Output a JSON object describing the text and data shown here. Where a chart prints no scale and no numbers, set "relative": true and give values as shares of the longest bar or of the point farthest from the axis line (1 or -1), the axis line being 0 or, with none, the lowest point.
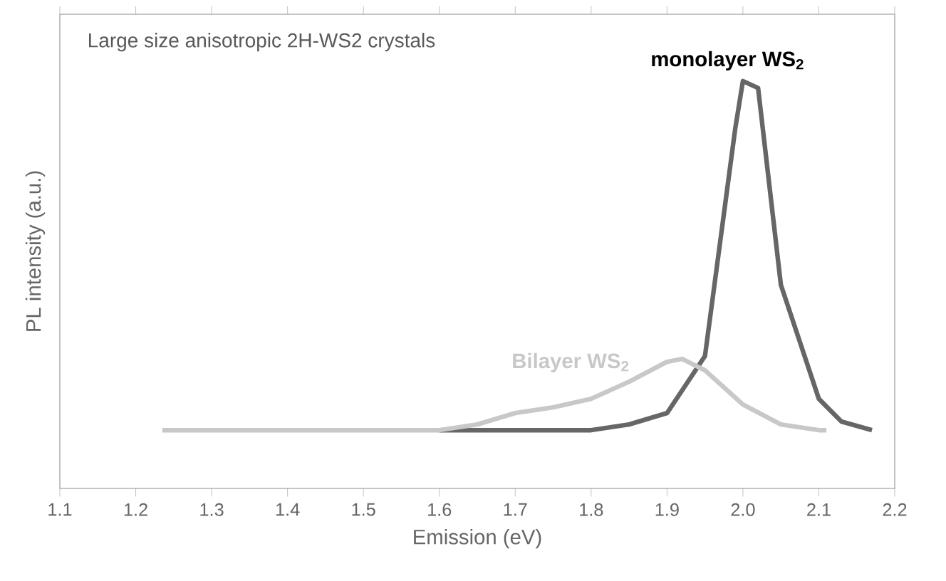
{
  "chart_data": {
    "type": "line",
    "xlabel": "Emission (eV)",
    "ylabel": "PL intensity (a.u.)",
    "relative": true,
    "tick_labels": "x",
    "grid": false,
    "legend": false,
    "marker": "none",
    "line_style": "solid",
    "xlim": [
      1.1,
      2.2
    ],
    "xticks": [
      1.1,
      1.2,
      1.3,
      1.4,
      1.5,
      1.6,
      1.7,
      1.8,
      1.9,
      {
        "value": 2,
        "label": "2.0"
      },
      2.1,
      2.2
    ],
    "annotations": [
      "Large size anisotropic 2H-WS2 crystals"
    ],
    "series": [
      {
        "name": "**monolayer WS$_{2}$**",
        "color": "#666666",
        "x": [
          1.6,
          1.7,
          1.8,
          1.85,
          1.9,
          1.95,
          1.97,
          1.99,
          2.0,
          2.02,
          2.05,
          2.1,
          2.13,
          2.17
        ],
        "values": [
          0.143,
          0.143,
          0.143,
          0.157,
          0.185,
          0.325,
          0.605,
          0.885,
          1,
          0.983,
          0.5,
          0.22,
          0.164,
          0.143
        ]
      },
      {
        "name": "**Bilayer WS$_{2}$**",
        "color": "#c8c8c8",
        "x": [
          1.235,
          1.4,
          1.6,
          1.65,
          1.7,
          1.75,
          1.8,
          1.85,
          1.9,
          1.92,
          1.95,
          2.0,
          2.05,
          2.1,
          2.11
        ],
        "values": [
          0.143,
          0.143,
          0.143,
          0.157,
          0.185,
          0.199,
          0.22,
          0.262,
          0.311,
          0.318,
          0.29,
          0.206,
          0.157,
          0.143,
          0.143
        ]
      }
    ]
  }
}
